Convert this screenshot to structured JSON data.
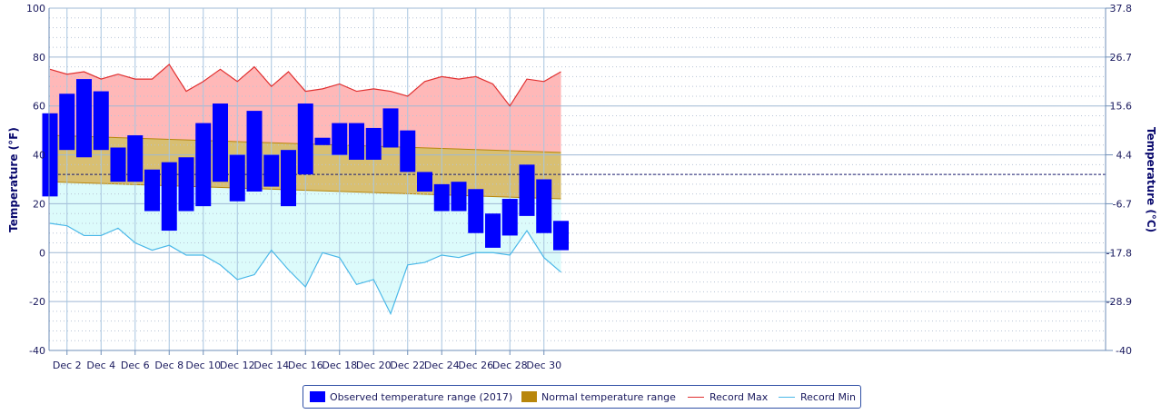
{
  "chart_data": {
    "type": "bar",
    "x_tick_labels": [
      "Dec 2",
      "Dec 4",
      "Dec 6",
      "Dec 8",
      "Dec 10",
      "Dec 12",
      "Dec 14",
      "Dec 16",
      "Dec 18",
      "Dec 20",
      "Dec 22",
      "Dec 24",
      "Dec 26",
      "Dec 28",
      "Dec 30"
    ],
    "days": [
      1,
      2,
      3,
      4,
      5,
      6,
      7,
      8,
      9,
      10,
      11,
      12,
      13,
      14,
      15,
      16,
      17,
      18,
      19,
      20,
      21,
      22,
      23,
      24,
      25,
      26,
      27,
      28,
      29,
      30,
      31
    ],
    "ylabel_left": "Temperature (°F)",
    "ylabel_right": "Temperature (°C)",
    "ylim": [
      -40,
      100
    ],
    "yticks_left": [
      "100",
      "80",
      "60",
      "40",
      "20",
      "0",
      "-20",
      "-40"
    ],
    "yticks_left_values": [
      100,
      80,
      60,
      40,
      20,
      0,
      -20,
      -40
    ],
    "yticks_right": [
      "37.8",
      "26.7",
      "15.6",
      "4.4",
      "-6.7",
      "-17.8",
      "-28.9",
      "-40"
    ],
    "freezing_line_f": 32,
    "grid": true,
    "legend_position": "bottom",
    "series": [
      {
        "name": "Observed temperature range (2017)",
        "color": "#0000ff",
        "low": [
          23,
          42,
          39,
          42,
          29,
          29,
          17,
          9,
          17,
          19,
          29,
          21,
          25,
          27,
          19,
          32,
          44,
          40,
          38,
          38,
          43,
          33,
          25,
          17,
          17,
          8,
          2,
          7,
          15,
          8,
          1
        ],
        "high": [
          57,
          65,
          71,
          66,
          43,
          48,
          34,
          37,
          39,
          53,
          61,
          40,
          58,
          40,
          42,
          61,
          47,
          53,
          53,
          51,
          59,
          50,
          33,
          28,
          29,
          26,
          16,
          22,
          36,
          30,
          13
        ]
      },
      {
        "name": "Normal temperature range",
        "color": "#b8860b",
        "low_start": 29,
        "low_end": 22,
        "high_start": 48,
        "high_end": 41
      },
      {
        "name": "Record Max",
        "color": "#e03030",
        "values": [
          75,
          73,
          74,
          71,
          73,
          71,
          71,
          77,
          66,
          70,
          75,
          70,
          76,
          68,
          74,
          66,
          67,
          69,
          66,
          67,
          66,
          64,
          70,
          72,
          71,
          72,
          69,
          60,
          71,
          70,
          74
        ]
      },
      {
        "name": "Record Min",
        "color": "#4ab8e8",
        "values": [
          12,
          11,
          7,
          7,
          10,
          4,
          1,
          3,
          -1,
          -1,
          -5,
          -11,
          -9,
          1,
          -7,
          -14,
          0,
          -2,
          -13,
          -11,
          -25,
          -5,
          -4,
          -1,
          -2,
          0,
          0,
          -1,
          9,
          -2,
          -8
        ]
      }
    ]
  },
  "legend": {
    "observed": "Observed temperature range (2017)",
    "normal": "Normal temperature range",
    "record_max": "Record Max",
    "record_min": "Record Min"
  }
}
